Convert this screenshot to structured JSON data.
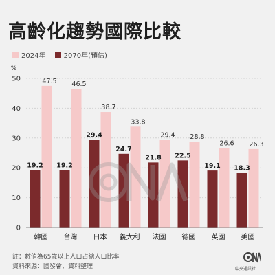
{
  "title": "高齡化趨勢國際比較",
  "colors": {
    "series_2024": "#f6c9c9",
    "series_2070": "#7b2a2c",
    "background": "#f1f1f1"
  },
  "footnote": "註：數值為65歲以上人口占總人口比率",
  "source": "資料來源：國發會、資料整理",
  "logo": {
    "mark": "CNA",
    "text": "中央通訊社"
  },
  "chart_data": {
    "type": "bar",
    "unit_label": "%",
    "categories": [
      "韓國",
      "台灣",
      "日本",
      "義大利",
      "法國",
      "德國",
      "英國",
      "美國"
    ],
    "series": [
      {
        "name": "2024年",
        "values": [
          47.5,
          46.5,
          38.7,
          33.8,
          29.4,
          28.8,
          26.6,
          26.3
        ]
      },
      {
        "name": "2070年(預估)",
        "values": [
          19.2,
          19.2,
          29.4,
          24.7,
          21.8,
          22.5,
          19.1,
          18.3
        ]
      }
    ],
    "ylim": [
      0,
      50
    ],
    "yticks": [
      0,
      10,
      20,
      30,
      40,
      50
    ],
    "grid": true,
    "legend": "top-left"
  }
}
